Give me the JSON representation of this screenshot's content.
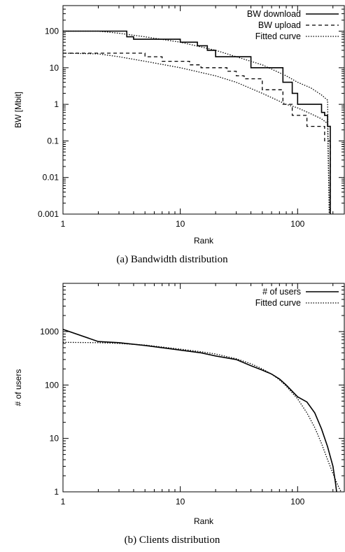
{
  "chart_data": [
    {
      "type": "line",
      "caption": "(a) Bandwidth distribution",
      "xlabel": "Rank",
      "ylabel": "BW [Mbit]",
      "xscale": "log",
      "yscale": "log",
      "xlim": [
        1,
        250
      ],
      "ylim": [
        0.001,
        500
      ],
      "xticks": [
        {
          "v": 1,
          "label": "1"
        },
        {
          "v": 10,
          "label": "10"
        },
        {
          "v": 100,
          "label": "100"
        }
      ],
      "yticks": [
        {
          "v": 0.001,
          "label": "0.001"
        },
        {
          "v": 0.01,
          "label": "0.01"
        },
        {
          "v": 0.1,
          "label": "0.1"
        },
        {
          "v": 1,
          "label": "1"
        },
        {
          "v": 10,
          "label": "10"
        },
        {
          "v": 100,
          "label": "100"
        }
      ],
      "legend_position": "top-right",
      "series": [
        {
          "name": "BW download",
          "style": "solid",
          "step": true,
          "x": [
            1,
            2,
            3,
            3.5,
            4,
            8,
            10,
            12,
            14,
            17,
            20,
            35,
            40,
            70,
            75,
            90,
            100,
            150,
            160,
            170,
            180,
            185,
            190
          ],
          "y": [
            100,
            100,
            100,
            70,
            60,
            60,
            50,
            50,
            40,
            30,
            20,
            20,
            10,
            10,
            4,
            2,
            1,
            1,
            0.6,
            0.5,
            0.25,
            0.25,
            0.001
          ]
        },
        {
          "name": "BW upload",
          "style": "dashed",
          "step": true,
          "x": [
            1,
            4,
            5,
            7,
            10,
            12,
            15,
            20,
            25,
            30,
            35,
            40,
            50,
            60,
            70,
            75,
            80,
            90,
            110,
            120,
            150,
            170,
            180,
            190
          ],
          "y": [
            25,
            25,
            20,
            15,
            15,
            12,
            10,
            10,
            8,
            6,
            5,
            5,
            2.5,
            2.5,
            2.5,
            1,
            1,
            0.5,
            0.5,
            0.25,
            0.25,
            0.1,
            0.1,
            0.001
          ]
        },
        {
          "name": "Fitted curve",
          "style": "dotted",
          "x": [
            1,
            2,
            3,
            5,
            10,
            20,
            30,
            50,
            80,
            100,
            130,
            160,
            180,
            186
          ],
          "y": [
            100,
            100,
            88,
            70,
            50,
            30,
            20,
            12,
            6,
            4,
            2.8,
            1.8,
            1.3,
            0.001
          ]
        },
        {
          "name": "",
          "style": "dotted",
          "x": [
            1,
            2,
            3,
            5,
            10,
            20,
            30,
            50,
            80,
            100,
            130,
            160,
            180,
            186
          ],
          "y": [
            25,
            24,
            20,
            15,
            10,
            6,
            4,
            2,
            1,
            0.8,
            0.55,
            0.4,
            0.3,
            0.001
          ]
        }
      ]
    },
    {
      "type": "line",
      "caption": "(b) Clients distribution",
      "xlabel": "Rank",
      "ylabel": "# of users",
      "xscale": "log",
      "yscale": "log",
      "xlim": [
        1,
        250
      ],
      "ylim": [
        1,
        8000
      ],
      "xticks": [
        {
          "v": 1,
          "label": "1"
        },
        {
          "v": 10,
          "label": "10"
        },
        {
          "v": 100,
          "label": "100"
        }
      ],
      "yticks": [
        {
          "v": 1,
          "label": "1"
        },
        {
          "v": 10,
          "label": "10"
        },
        {
          "v": 100,
          "label": "100"
        },
        {
          "v": 1000,
          "label": "1000"
        }
      ],
      "legend_position": "top-right",
      "series": [
        {
          "name": "# of users",
          "style": "solid",
          "x": [
            1,
            2,
            3,
            5,
            10,
            15,
            20,
            30,
            40,
            50,
            60,
            70,
            80,
            100,
            120,
            140,
            160,
            180,
            200,
            210,
            215
          ],
          "y": [
            1100,
            650,
            620,
            550,
            450,
            400,
            350,
            300,
            230,
            190,
            160,
            130,
            100,
            60,
            48,
            30,
            15,
            7,
            3,
            1.5,
            1
          ]
        },
        {
          "name": "Fitted curve",
          "style": "dotted",
          "x": [
            1,
            2,
            3,
            5,
            10,
            15,
            20,
            30,
            40,
            50,
            60,
            70,
            80,
            100,
            120,
            140,
            160,
            180,
            200,
            215,
            225,
            235
          ],
          "y": [
            630,
            620,
            600,
            560,
            470,
            420,
            380,
            310,
            250,
            200,
            160,
            125,
            95,
            55,
            30,
            16,
            8,
            4,
            2.2,
            1.5,
            1.2,
            1
          ]
        }
      ]
    }
  ]
}
